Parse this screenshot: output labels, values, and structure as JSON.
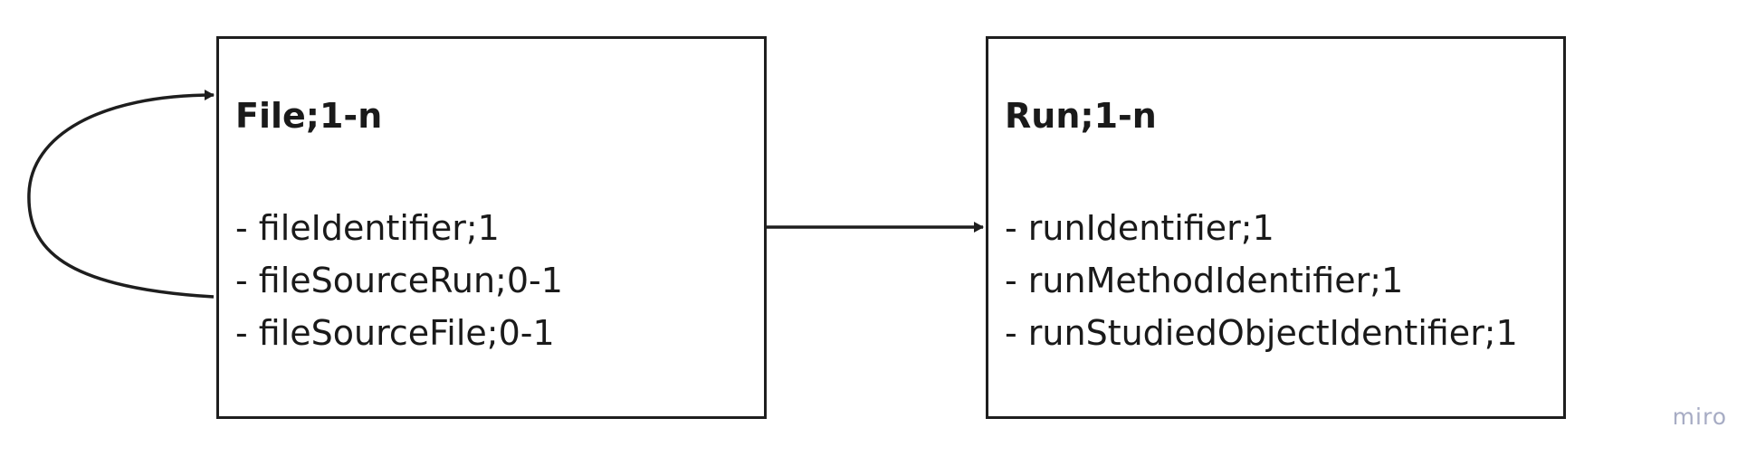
{
  "entities": [
    {
      "title": "File;1-n",
      "attributes": [
        "- fileIdentifier;1",
        "- fileSourceRun;0-1",
        "- fileSourceFile;0-1"
      ]
    },
    {
      "title": "Run;1-n",
      "attributes": [
        "- runIdentifier;1",
        "- runMethodIdentifier;1",
        "- runStudiedObjectIdentifier;1"
      ]
    }
  ],
  "watermark": "miro",
  "colors": {
    "stroke": "#1e1e1e",
    "text": "#1a1a1a",
    "watermark": "#a7acc4"
  }
}
